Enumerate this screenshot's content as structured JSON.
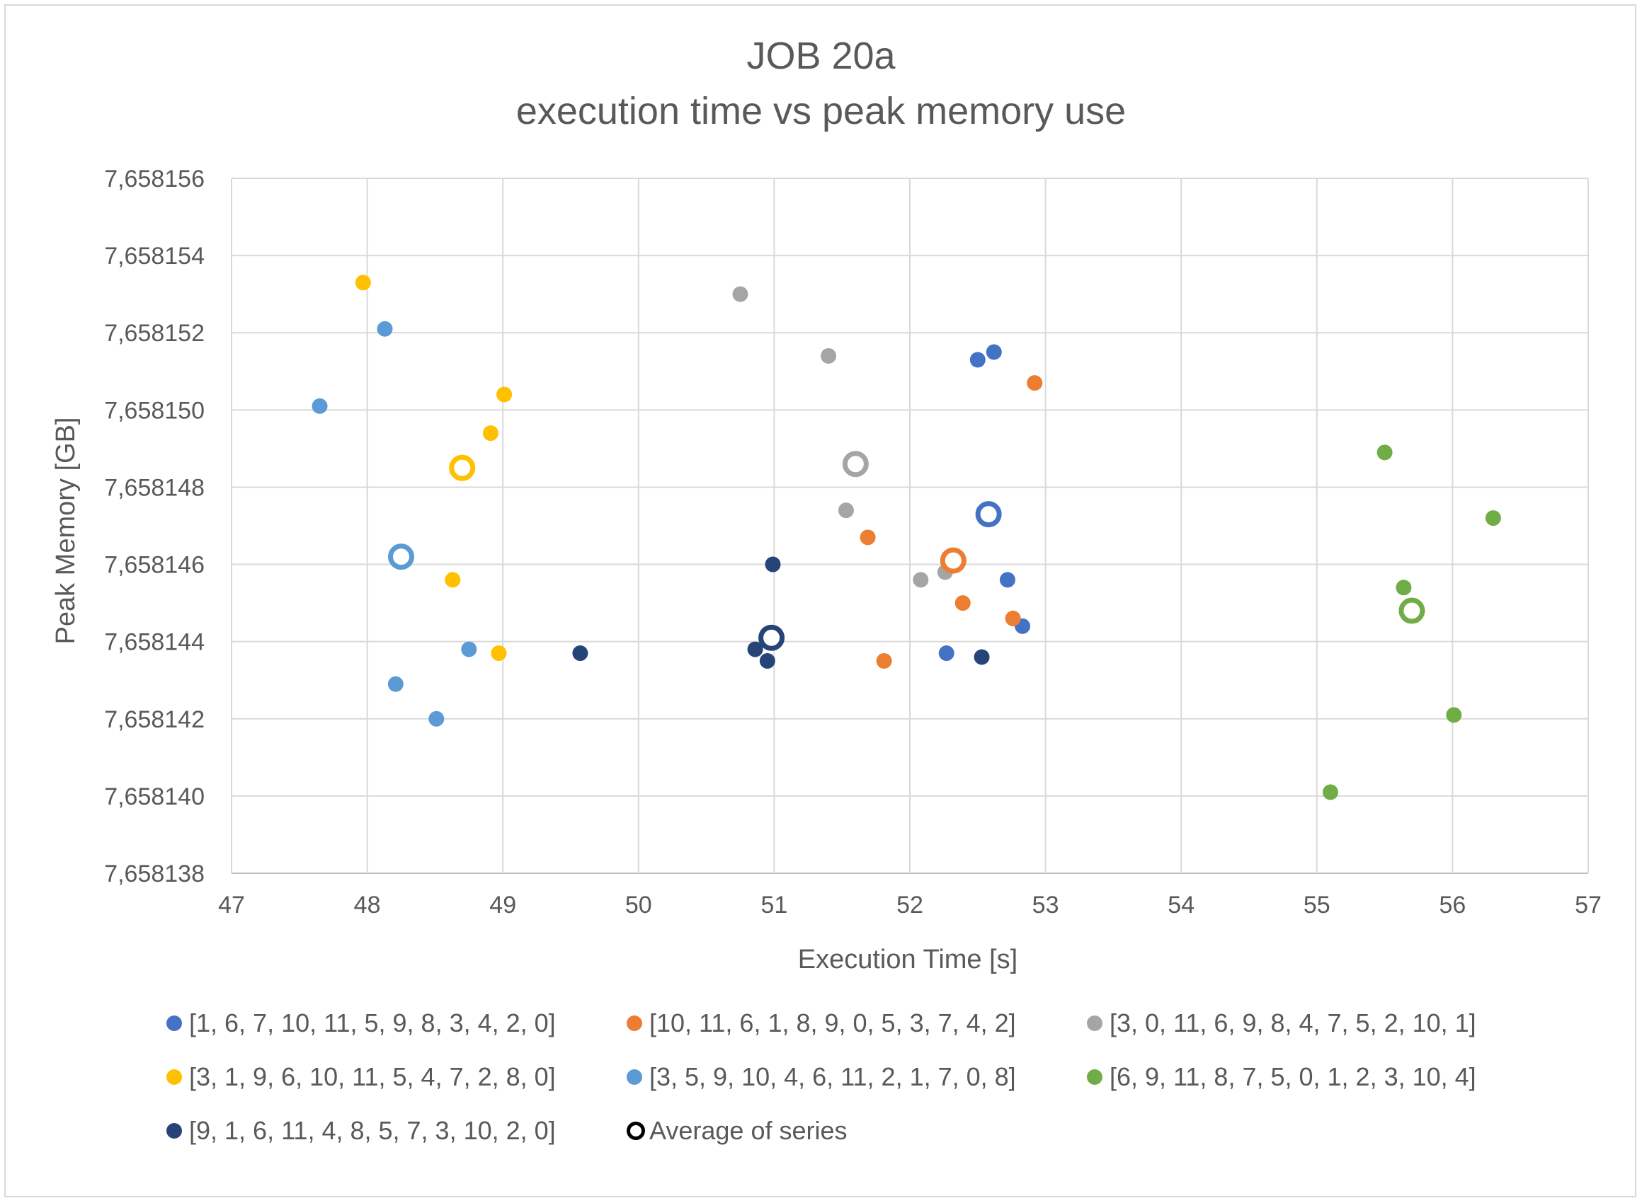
{
  "chart_data": {
    "type": "scatter",
    "title_line1": "JOB 20a",
    "title_line2": "execution time vs peak memory use",
    "xlabel": "Execution Time [s]",
    "ylabel": "Peak Memory [GB]",
    "xlim": [
      47,
      57
    ],
    "ylim": [
      7.658138,
      7.658156
    ],
    "x_ticks": [
      "47",
      "48",
      "49",
      "50",
      "51",
      "52",
      "53",
      "54",
      "55",
      "56",
      "57"
    ],
    "y_ticks": [
      "7,658138",
      "7,658140",
      "7,658142",
      "7,658144",
      "7,658146",
      "7,658148",
      "7,658150",
      "7,658152",
      "7,658154",
      "7,658156"
    ],
    "grid": true,
    "legend_position": "bottom",
    "series": [
      {
        "name": "[1, 6, 7, 10, 11, 5, 9, 8, 3, 4, 2, 0]",
        "color": "#4472C4",
        "points": [
          [
            52.5,
            7.6581513
          ],
          [
            52.62,
            7.6581515
          ],
          [
            52.72,
            7.6581456
          ],
          [
            52.83,
            7.6581444
          ],
          [
            52.27,
            7.6581437
          ]
        ],
        "average": [
          52.58,
          7.6581473
        ]
      },
      {
        "name": "[10, 11, 6, 1, 8, 9, 0, 5, 3, 7, 4, 2]",
        "color": "#ED7D31",
        "points": [
          [
            52.92,
            7.6581507
          ],
          [
            51.69,
            7.6581467
          ],
          [
            52.39,
            7.658145
          ],
          [
            52.76,
            7.6581446
          ],
          [
            51.81,
            7.6581435
          ]
        ],
        "average": [
          52.32,
          7.6581461
        ]
      },
      {
        "name": "[3, 0, 11, 6, 9, 8, 4, 7, 5, 2, 10, 1]",
        "color": "#A5A5A5",
        "points": [
          [
            50.75,
            7.658153
          ],
          [
            51.4,
            7.6581514
          ],
          [
            51.53,
            7.6581474
          ],
          [
            52.08,
            7.6581456
          ],
          [
            52.26,
            7.6581458
          ]
        ],
        "average": [
          51.6,
          7.6581486
        ]
      },
      {
        "name": "[3, 1, 9, 6, 10, 11, 5, 4, 7, 2, 8, 0]",
        "color": "#FFC000",
        "points": [
          [
            47.97,
            7.6581533
          ],
          [
            49.01,
            7.6581504
          ],
          [
            48.91,
            7.6581494
          ],
          [
            48.63,
            7.6581456
          ],
          [
            48.97,
            7.6581437
          ]
        ],
        "average": [
          48.7,
          7.6581485
        ]
      },
      {
        "name": "[3, 5, 9, 10, 4, 6, 11, 2, 1, 7, 0, 8]",
        "color": "#5B9BD5",
        "points": [
          [
            48.13,
            7.6581521
          ],
          [
            47.65,
            7.6581501
          ],
          [
            48.75,
            7.6581438
          ],
          [
            48.21,
            7.6581429
          ],
          [
            48.51,
            7.658142
          ]
        ],
        "average": [
          48.25,
          7.6581462
        ]
      },
      {
        "name": "[6, 9, 11, 8, 7, 5, 0, 1, 2, 3, 10, 4]",
        "color": "#70AD47",
        "points": [
          [
            55.5,
            7.6581489
          ],
          [
            56.3,
            7.6581472
          ],
          [
            55.64,
            7.6581454
          ],
          [
            56.01,
            7.6581421
          ],
          [
            55.1,
            7.6581401
          ]
        ],
        "average": [
          55.7,
          7.6581448
        ]
      },
      {
        "name": "[9, 1, 6, 11, 4, 8, 5, 7, 3, 10, 2, 0]",
        "color": "#264478",
        "points": [
          [
            50.99,
            7.658146
          ],
          [
            49.57,
            7.6581437
          ],
          [
            50.86,
            7.6581438
          ],
          [
            50.95,
            7.6581435
          ],
          [
            52.53,
            7.6581436
          ]
        ],
        "average": [
          50.98,
          7.6581441
        ]
      }
    ],
    "average_legend_label": "Average of series"
  }
}
